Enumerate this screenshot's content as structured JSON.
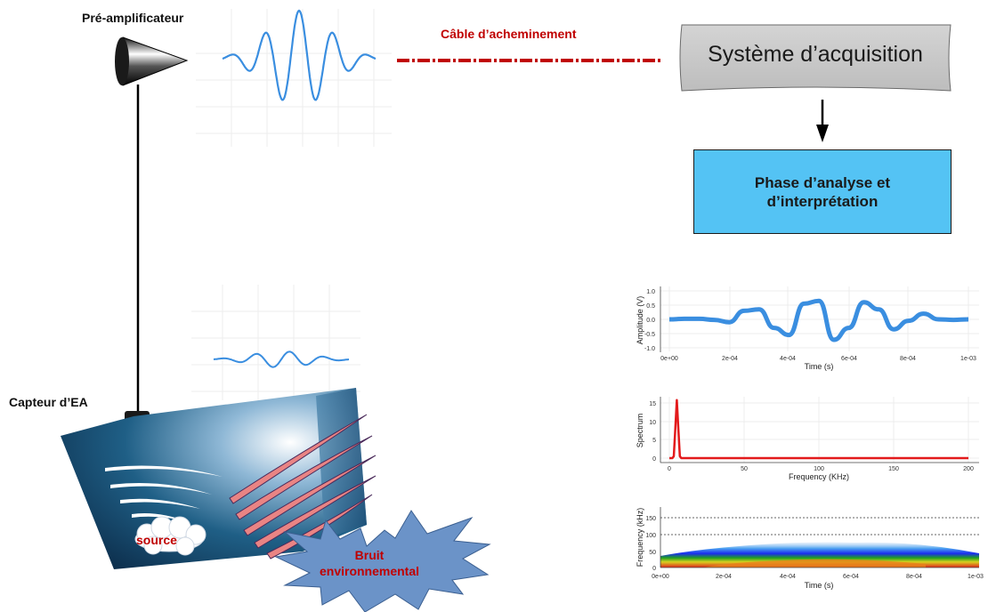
{
  "labels": {
    "preamp": "Pré-amplificateur",
    "cable": "Câble d’acheminement",
    "acquisition": "Système d’acquisition",
    "analysis_line1": "Phase d’analyse et",
    "analysis_line2": "d’interprétation",
    "sensor": "Capteur d’EA",
    "source": "source",
    "noise_line1": "Bruit",
    "noise_line2": "environnemental"
  },
  "colors": {
    "cable": "#c00000",
    "waveform": "#3a8ee0",
    "analysis_box": "#54c3f4",
    "acquisition_box": "#c8c8c8",
    "spectrum": "#e31a1c",
    "noise_star": "#6b93c8"
  },
  "chart_data": [
    {
      "type": "line",
      "xlabel": "Time (s)",
      "ylabel": "Amplitude (V)",
      "x_ticks": [
        "0e+00",
        "2e-04",
        "4e-04",
        "6e-04",
        "8e-04",
        "1e-03"
      ],
      "y_ticks": [
        "-1.0",
        "-0.5",
        "0.0",
        "0.5",
        "1.0"
      ],
      "xlim": [
        0,
        0.001
      ],
      "ylim": [
        -1.0,
        1.0
      ],
      "series": [
        {
          "x": [
            0,
            5e-05,
            0.0001,
            0.00015,
            0.0002,
            0.00025,
            0.0003,
            0.00035,
            0.0004,
            0.00045,
            0.0005,
            0.00055,
            0.0006,
            0.00065,
            0.0007,
            0.00075,
            0.0008,
            0.00085,
            0.0009,
            0.00095,
            0.001
          ],
          "values": [
            0.0,
            0.02,
            0.02,
            -0.02,
            -0.1,
            0.3,
            0.35,
            -0.3,
            -0.55,
            0.55,
            0.65,
            -0.72,
            -0.3,
            0.6,
            0.35,
            -0.35,
            -0.05,
            0.2,
            0.0,
            -0.02,
            0.0
          ]
        }
      ],
      "grid": true
    },
    {
      "type": "line",
      "xlabel": "Frequency (KHz)",
      "ylabel": "Spectrum",
      "x_ticks": [
        "0",
        "50",
        "100",
        "150",
        "200"
      ],
      "y_ticks": [
        "0",
        "5",
        "10",
        "15"
      ],
      "xlim": [
        0,
        200
      ],
      "ylim": [
        0,
        16.5
      ],
      "series": [
        {
          "x": [
            0,
            2,
            3,
            4,
            5,
            6,
            7,
            8,
            200
          ],
          "values": [
            0,
            0,
            0.5,
            8,
            15.8,
            8,
            0.5,
            0,
            0
          ]
        }
      ],
      "grid": true
    },
    {
      "type": "heatmap",
      "xlabel": "Time (s)",
      "ylabel": "Frequency (kHz)",
      "x_ticks": [
        "0e+00",
        "2e-04",
        "4e-04",
        "6e-04",
        "8e-04",
        "1e-03"
      ],
      "y_ticks": [
        "0",
        "50",
        "100",
        "150"
      ],
      "xlim": [
        0,
        0.001
      ],
      "ylim": [
        0,
        170
      ],
      "reference_lines_y": [
        100,
        150
      ]
    }
  ]
}
